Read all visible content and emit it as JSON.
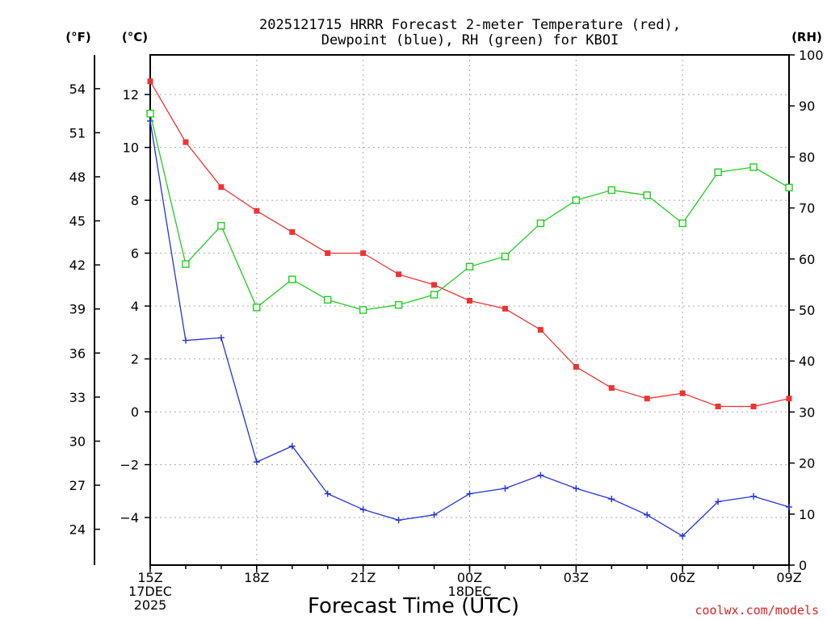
{
  "chart_data": {
    "type": "line",
    "title_line1": "2025121715 HRRR Forecast 2-meter Temperature (red),",
    "title_line2": "Dewpoint (blue), RH (green) for KBOI",
    "xlabel": "Forecast Time (UTC)",
    "credit": "coolwx.com/models",
    "units": {
      "fahrenheit": "(°F)",
      "celsius": "(°C)",
      "rh": "(RH)"
    },
    "x_ticks": [
      {
        "hour": 0,
        "lines": [
          "15Z",
          "17DEC",
          "2025"
        ]
      },
      {
        "hour": 3,
        "lines": [
          "18Z"
        ]
      },
      {
        "hour": 6,
        "lines": [
          "21Z"
        ]
      },
      {
        "hour": 9,
        "lines": [
          "00Z",
          "18DEC"
        ]
      },
      {
        "hour": 12,
        "lines": [
          "03Z"
        ]
      },
      {
        "hour": 15,
        "lines": [
          "06Z"
        ]
      },
      {
        "hour": 18,
        "lines": [
          "09Z"
        ]
      }
    ],
    "x_range": [
      0,
      18
    ],
    "ylim_celsius": [
      -5.8,
      13.5
    ],
    "ylim_rh": [
      0,
      100
    ],
    "y_ticks_celsius": [
      "−4",
      "−2",
      "0",
      "2",
      "4",
      "6",
      "8",
      "10",
      "12"
    ],
    "y_ticks_fahrenheit": [
      "24",
      "27",
      "30",
      "33",
      "36",
      "39",
      "42",
      "45",
      "48",
      "51",
      "54"
    ],
    "y_ticks_rh": [
      "0",
      "10",
      "20",
      "30",
      "40",
      "50",
      "60",
      "70",
      "80",
      "90",
      "100"
    ],
    "x_hours": [
      0,
      1,
      2,
      3,
      4,
      5,
      6,
      7,
      8,
      9,
      10,
      11,
      12,
      13,
      14,
      15,
      16,
      17,
      18
    ],
    "series": [
      {
        "name": "Temperature",
        "axis": "celsius",
        "color": "#ee3333",
        "marker": "filled-square",
        "values": [
          12.5,
          10.2,
          8.5,
          7.6,
          6.8,
          6.0,
          6.0,
          5.2,
          4.8,
          4.2,
          3.9,
          3.1,
          1.7,
          0.9,
          0.5,
          0.7,
          0.2,
          0.2,
          0.5
        ]
      },
      {
        "name": "Dewpoint",
        "axis": "celsius",
        "color": "#2233dd",
        "marker": "plus",
        "values": [
          11.0,
          2.7,
          2.8,
          -1.9,
          -1.3,
          -3.1,
          -3.7,
          -4.1,
          -3.9,
          -3.1,
          -2.9,
          -2.4,
          -2.9,
          -3.3,
          -3.9,
          -4.7,
          -3.4,
          -3.2,
          -3.6
        ]
      },
      {
        "name": "RH",
        "axis": "rh",
        "color": "#22cc22",
        "marker": "open-square",
        "values": [
          88.5,
          59,
          66.5,
          50.5,
          56,
          52,
          50,
          51,
          53,
          58.5,
          60.5,
          67,
          71.5,
          73.5,
          72.5,
          67,
          77,
          78,
          74
        ]
      }
    ]
  }
}
